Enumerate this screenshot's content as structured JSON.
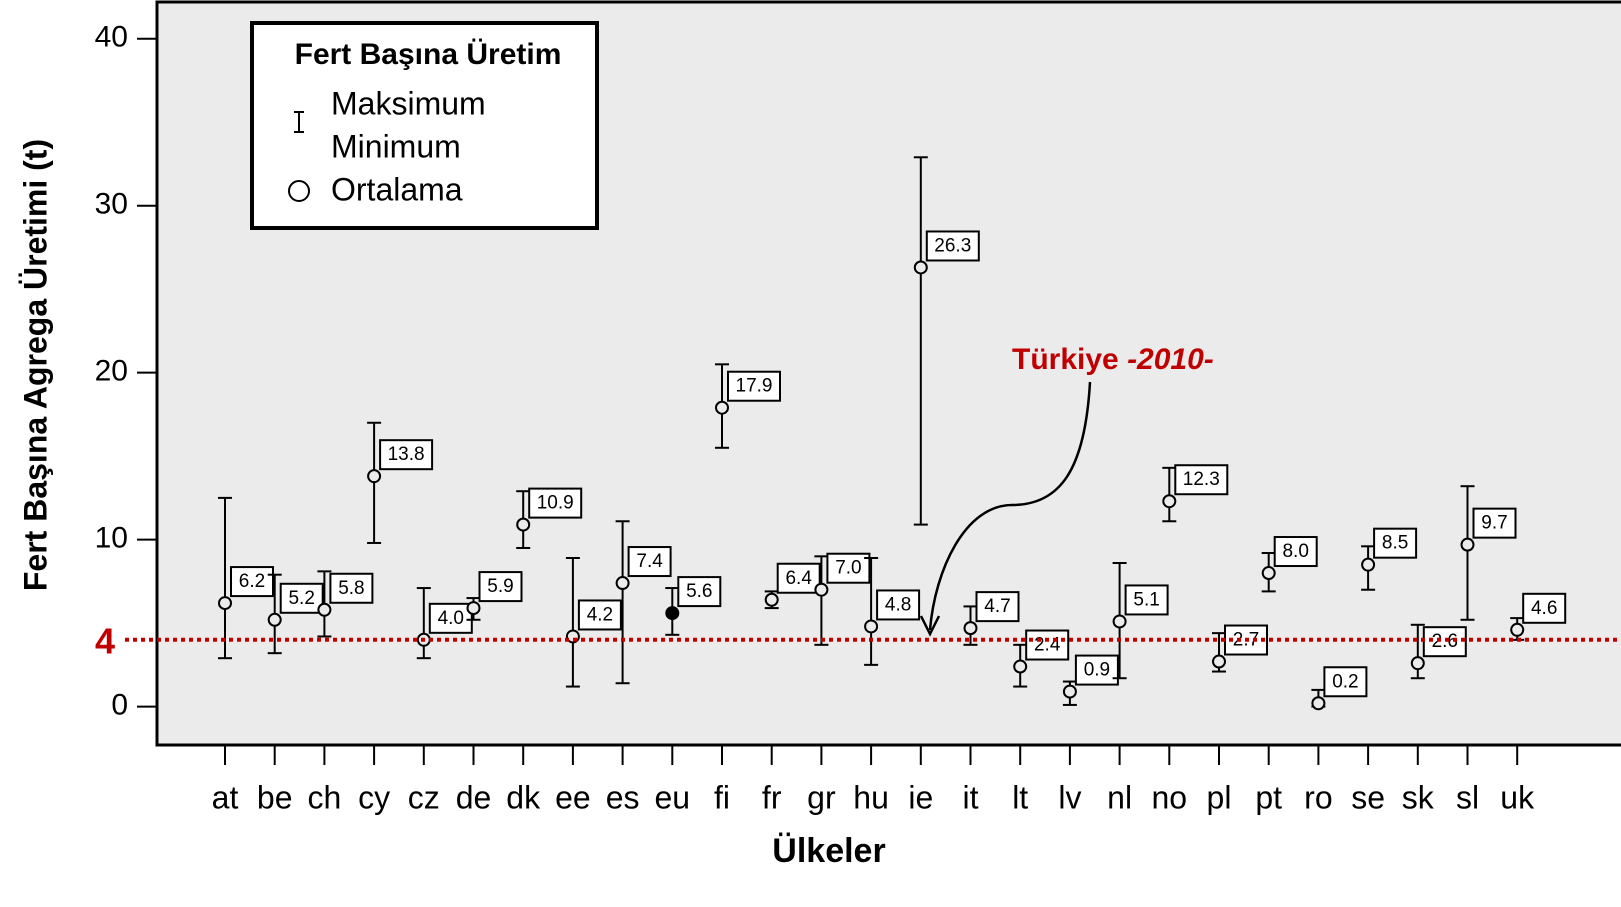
{
  "chart_data": {
    "type": "errorbar",
    "x_label": "Ülkeler",
    "y_label": "Fert Başına Agrega Üretimi (t)",
    "categories": [
      "at",
      "be",
      "ch",
      "cy",
      "cz",
      "de",
      "dk",
      "ee",
      "es",
      "eu",
      "fi",
      "fr",
      "gr",
      "hu",
      "ie",
      "it",
      "lt",
      "lv",
      "nl",
      "no",
      "pl",
      "pt",
      "ro",
      "se",
      "sk",
      "sl",
      "uk"
    ],
    "values": [
      6.2,
      5.2,
      5.8,
      13.8,
      4.0,
      5.9,
      10.9,
      4.2,
      7.4,
      5.6,
      17.9,
      6.4,
      7.0,
      4.8,
      26.3,
      4.7,
      2.4,
      0.9,
      5.1,
      12.3,
      2.7,
      8.0,
      0.2,
      8.5,
      2.6,
      9.7,
      4.6
    ],
    "value_labels": [
      "6.2",
      "5.2",
      "5.8",
      "13.8",
      "4.0",
      "5.9",
      "10.9",
      "4.2",
      "7.4",
      "5.6",
      "17.9",
      "6.4",
      "7.0",
      "4.8",
      "26.3",
      "4.7",
      "2.4",
      "0.9",
      "5.1",
      "12.3",
      "2.7",
      "8.0",
      "0.2",
      "8.5",
      "2.6",
      "9.7",
      "4.6"
    ],
    "max": [
      12.5,
      7.9,
      8.1,
      17.0,
      7.1,
      6.5,
      12.9,
      8.9,
      11.1,
      7.1,
      20.5,
      6.9,
      9.0,
      8.9,
      32.9,
      6.0,
      3.7,
      1.5,
      8.6,
      14.3,
      4.4,
      9.2,
      1.0,
      9.6,
      4.9,
      13.2,
      5.3
    ],
    "min": [
      2.9,
      3.2,
      4.2,
      9.8,
      2.9,
      5.2,
      9.5,
      1.2,
      1.4,
      4.3,
      15.5,
      5.9,
      3.7,
      2.5,
      10.9,
      3.7,
      1.2,
      0.1,
      1.7,
      11.1,
      2.1,
      6.9,
      0.0,
      7.0,
      1.7,
      5.2,
      4.0
    ],
    "highlight": "eu",
    "ylim": [
      -2.3,
      42.2
    ],
    "yticks": [
      0,
      10,
      20,
      30,
      40
    ],
    "reference_line": 4,
    "reference_color": "#c00000",
    "legend": {
      "title": "Fert Başına Üretim",
      "entries": [
        "Maksimum",
        "Minimum",
        "Ortalama"
      ]
    },
    "annotation": {
      "text": "Türkiye",
      "emphasis": "-2010-"
    }
  }
}
